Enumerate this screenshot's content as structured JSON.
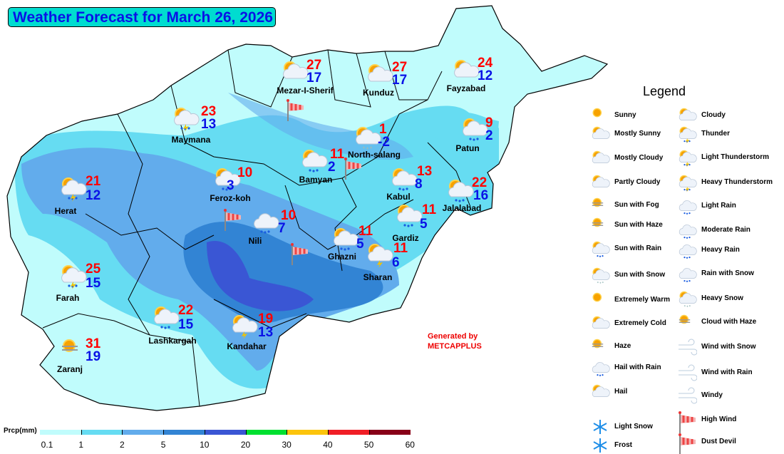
{
  "title": "Weather Forecast for March 26, 2026",
  "cities": [
    {
      "name": "Mezar-I-Sherif",
      "high": "27",
      "low": "17",
      "icon": "partly-cloudy"
    },
    {
      "name": "Kunduz",
      "high": "27",
      "low": "17",
      "icon": "partly-cloudy"
    },
    {
      "name": "Fayzabad",
      "high": "24",
      "low": "12",
      "icon": "partly-cloudy"
    },
    {
      "name": "Maymana",
      "high": "23",
      "low": "13",
      "icon": "light-thunderstorm"
    },
    {
      "name": "North-salang",
      "high": "1",
      "low": "-2",
      "icon": "sun-with-snow"
    },
    {
      "name": "Patun",
      "high": "9",
      "low": "2",
      "icon": "sun-with-rain"
    },
    {
      "name": "Bamyan",
      "high": "11",
      "low": "2",
      "icon": "sun-with-rain"
    },
    {
      "name": "Kabul",
      "high": "13",
      "low": "8",
      "icon": "sun-with-rain"
    },
    {
      "name": "Jalalabad",
      "high": "22",
      "low": "16",
      "icon": "sun-with-rain"
    },
    {
      "name": "Herat",
      "high": "21",
      "low": "12",
      "icon": "light-thunderstorm"
    },
    {
      "name": "Feroz-koh",
      "high": "10",
      "low": "3",
      "icon": "sun-with-rain"
    },
    {
      "name": "Nili",
      "high": "10",
      "low": "7",
      "icon": "light-rain"
    },
    {
      "name": "Gardiz",
      "high": "11",
      "low": "5",
      "icon": "sun-with-rain"
    },
    {
      "name": "Ghazni",
      "high": "11",
      "low": "5",
      "icon": "sun-with-rain"
    },
    {
      "name": "Sharan",
      "high": "11",
      "low": "6",
      "icon": "thunder"
    },
    {
      "name": "Farah",
      "high": "25",
      "low": "15",
      "icon": "light-thunderstorm"
    },
    {
      "name": "Lashkargah",
      "high": "22",
      "low": "15",
      "icon": "sun-with-rain"
    },
    {
      "name": "Kandahar",
      "high": "19",
      "low": "13",
      "icon": "thunder"
    },
    {
      "name": "Zaranj",
      "high": "31",
      "low": "19",
      "icon": "sun-with-haze"
    }
  ],
  "wind_flags": [
    "high-wind",
    "high-wind",
    "high-wind",
    "high-wind"
  ],
  "generated_by": [
    "Generated by",
    "METCAPPLUS"
  ],
  "legend": {
    "title": "Legend",
    "left": [
      "Sunny",
      "Mostly Sunny",
      "Mostly Cloudy",
      "Partly Cloudy",
      "Sun with Fog",
      "Sun with Haze",
      "Sun with Rain",
      "Sun with Snow",
      "Extremely Warm",
      "Extremely Cold",
      "Haze",
      "Hail with Rain",
      "Hail",
      "Light Snow",
      "Frost"
    ],
    "right": [
      "Cloudy",
      "Thunder",
      "Light Thunderstorm",
      "Heavy Thunderstorm",
      "Light Rain",
      "Moderate Rain",
      "Heavy Rain",
      "Rain with Snow",
      "Heavy Snow",
      "Cloud with Haze",
      "Wind with Snow",
      "Wind with Rain",
      "Windy",
      "High Wind",
      "Dust Devil"
    ]
  },
  "precip_scale": {
    "label": "Prcp(mm)",
    "ticks": [
      "0.1",
      "1",
      "2",
      "5",
      "10",
      "20",
      "30",
      "40",
      "50",
      "60"
    ],
    "colors": [
      "#c0fcfc",
      "#66dcf2",
      "#62acec",
      "#3284d4",
      "#3a56d4",
      "#00e030",
      "#fcc40c",
      "#f01e26",
      "#880018"
    ]
  }
}
